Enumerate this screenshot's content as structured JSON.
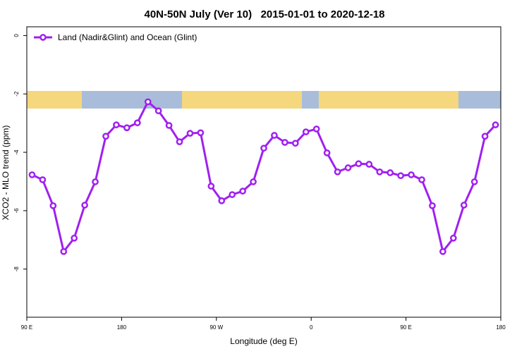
{
  "chart_data": {
    "type": "line",
    "title": "40N-50N July (Ver 10)   2015-01-01 to 2020-12-18",
    "x_label": "Longitude (deg E)",
    "y_label": "XCO2 - MLO trend (ppm)",
    "x": [
      95,
      105,
      115,
      125,
      135,
      145,
      155,
      165,
      175,
      185,
      195,
      205,
      215,
      225,
      235,
      245,
      255,
      265,
      275,
      285,
      295,
      305,
      315,
      325,
      335,
      345,
      355,
      365,
      375,
      385,
      395,
      405,
      415,
      425,
      435,
      445,
      455,
      465,
      475,
      485,
      495,
      505,
      515,
      525,
      535
    ],
    "series": [
      {
        "name": "Land (Nadir&Glint) and Ocean (Glint)",
        "color": "#a020f0",
        "values": [
          -4.77,
          -4.94,
          -5.83,
          -7.4,
          -6.94,
          -5.81,
          -5.01,
          -3.45,
          -3.06,
          -3.16,
          -2.99,
          -2.27,
          -2.58,
          -3.08,
          -3.64,
          -3.35,
          -3.33,
          -5.16,
          -5.66,
          -5.45,
          -5.33,
          -5.01,
          -3.86,
          -3.42,
          -3.66,
          -3.69,
          -3.3,
          -3.2,
          -4.02,
          -4.67,
          -4.53,
          -4.39,
          -4.41,
          -4.67,
          -4.7,
          -4.8,
          -4.77,
          -4.94,
          -5.83,
          -7.4,
          -6.94,
          -5.81,
          -5.01,
          -3.45,
          -3.06
        ]
      }
    ],
    "xlim": [
      90,
      540
    ],
    "xticks": [
      {
        "value": 90,
        "label": "90 E"
      },
      {
        "value": 180,
        "label": "180"
      },
      {
        "value": 270,
        "label": "90 W"
      },
      {
        "value": 360,
        "label": "0"
      },
      {
        "value": 450,
        "label": "90 E"
      },
      {
        "value": 540,
        "label": "180"
      }
    ],
    "ylim": [
      -9.65,
      0.3
    ],
    "yticks": [
      0,
      -2,
      -4,
      -6,
      -8
    ],
    "legend": "topleft"
  }
}
